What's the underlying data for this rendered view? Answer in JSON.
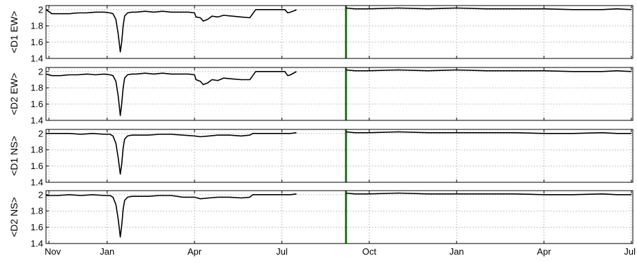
{
  "chart_data": {
    "type": "line",
    "shared_x_ticks": [
      "Nov",
      "Jan",
      "Apr",
      "Jul",
      "Oct",
      "Jan",
      "Apr",
      "Jul"
    ],
    "x_tick_months": [
      0,
      2,
      5,
      8,
      11,
      14,
      17,
      20
    ],
    "xlim": [
      -0.1,
      20.05
    ],
    "ylim": [
      1.4,
      2.05
    ],
    "y_ticks": [
      "1.4",
      "1.6",
      "1.8",
      "2"
    ],
    "y_tick_values": [
      1.4,
      1.6,
      1.8,
      2.0
    ],
    "grid": true,
    "vertical_marker": {
      "x": 10.2,
      "color": "#1f7a1f"
    },
    "panels": [
      {
        "ylabel": "<D1 EW>",
        "series": [
          {
            "x": [
              -0.1,
              0.1,
              0.4,
              0.7,
              1.0,
              1.3,
              1.6,
              1.9,
              2.1,
              2.2,
              2.3,
              2.38,
              2.45,
              2.5,
              2.55,
              2.6,
              2.7,
              2.85,
              3.0,
              3.3,
              3.6,
              3.9,
              4.2,
              4.5,
              4.8,
              5.0,
              5.05,
              5.2,
              5.3,
              5.45,
              5.6,
              5.8,
              6.0,
              6.3,
              6.6,
              6.9,
              7.0,
              7.1,
              7.3,
              7.6,
              7.9,
              8.1,
              8.2,
              8.3,
              8.45,
              8.5,
              10.2,
              10.5,
              11,
              12,
              13,
              14,
              15,
              16,
              17,
              18,
              19,
              19.5,
              20.0
            ],
            "y": [
              2.0,
              1.95,
              1.95,
              1.95,
              1.96,
              1.96,
              1.97,
              1.97,
              1.96,
              1.95,
              1.88,
              1.7,
              1.48,
              1.6,
              1.8,
              1.92,
              1.96,
              1.97,
              1.97,
              1.98,
              1.97,
              1.98,
              1.97,
              1.97,
              1.97,
              1.96,
              1.91,
              1.9,
              1.86,
              1.88,
              1.92,
              1.91,
              1.93,
              1.92,
              1.91,
              1.9,
              1.95,
              2.0,
              2.0,
              2.0,
              2.0,
              2.0,
              1.96,
              1.97,
              1.99,
              2.0,
              2.02,
              2.01,
              2.01,
              2.02,
              2.01,
              2.02,
              2.01,
              2.01,
              2.01,
              2.0,
              2.0,
              2.01,
              2.0
            ]
          }
        ]
      },
      {
        "ylabel": "<D2 EW>",
        "series": [
          {
            "x": [
              -0.1,
              0.1,
              0.4,
              0.7,
              1.0,
              1.3,
              1.6,
              1.9,
              2.1,
              2.2,
              2.3,
              2.38,
              2.45,
              2.5,
              2.55,
              2.6,
              2.7,
              2.85,
              3.0,
              3.3,
              3.6,
              3.9,
              4.2,
              4.5,
              4.8,
              5.0,
              5.05,
              5.2,
              5.3,
              5.45,
              5.6,
              5.8,
              6.0,
              6.3,
              6.6,
              6.9,
              7.0,
              7.1,
              7.3,
              7.6,
              7.9,
              8.1,
              8.2,
              8.3,
              8.45,
              8.5,
              10.2,
              10.5,
              11,
              12,
              13,
              14,
              15,
              16,
              17,
              18,
              19,
              19.5,
              20.0
            ],
            "y": [
              1.97,
              1.95,
              1.95,
              1.96,
              1.96,
              1.97,
              1.96,
              1.97,
              1.96,
              1.95,
              1.88,
              1.7,
              1.46,
              1.6,
              1.8,
              1.92,
              1.96,
              1.97,
              1.97,
              1.98,
              1.97,
              1.98,
              1.97,
              1.97,
              1.97,
              1.96,
              1.9,
              1.88,
              1.84,
              1.86,
              1.9,
              1.89,
              1.92,
              1.91,
              1.9,
              1.9,
              1.95,
              2.0,
              2.0,
              2.0,
              2.0,
              2.0,
              1.95,
              1.96,
              1.99,
              2.0,
              2.02,
              2.01,
              2.01,
              2.02,
              2.01,
              2.02,
              2.01,
              2.01,
              2.01,
              2.0,
              2.0,
              2.01,
              2.0
            ]
          }
        ]
      },
      {
        "ylabel": "<D1 NS>",
        "series": [
          {
            "x": [
              -0.1,
              0.3,
              0.7,
              1.1,
              1.5,
              1.9,
              2.1,
              2.2,
              2.3,
              2.38,
              2.45,
              2.5,
              2.55,
              2.6,
              2.7,
              2.85,
              3.0,
              3.4,
              3.8,
              4.2,
              4.6,
              5.0,
              5.2,
              5.5,
              5.8,
              6.2,
              6.6,
              6.9,
              7.0,
              7.1,
              7.5,
              8.0,
              8.3,
              8.5,
              10.2,
              10.5,
              11,
              12,
              13,
              14,
              15,
              16,
              17,
              18,
              19,
              19.5,
              20.0
            ],
            "y": [
              2.0,
              2.0,
              2.0,
              1.99,
              2.0,
              1.99,
              1.99,
              1.97,
              1.88,
              1.7,
              1.5,
              1.62,
              1.82,
              1.93,
              1.97,
              1.98,
              1.98,
              1.98,
              1.99,
              1.99,
              1.98,
              1.97,
              1.96,
              1.97,
              1.98,
              1.98,
              1.97,
              1.98,
              2.0,
              2.0,
              2.0,
              2.0,
              2.0,
              2.01,
              2.02,
              2.01,
              2.01,
              2.02,
              2.01,
              2.01,
              2.01,
              2.01,
              2.0,
              2.0,
              2.01,
              2.0,
              2.0
            ]
          }
        ]
      },
      {
        "ylabel": "<D2 NS>",
        "series": [
          {
            "x": [
              -0.1,
              0.3,
              0.7,
              1.1,
              1.5,
              1.9,
              2.1,
              2.2,
              2.3,
              2.38,
              2.45,
              2.5,
              2.55,
              2.6,
              2.7,
              2.85,
              3.0,
              3.4,
              3.8,
              4.2,
              4.6,
              5.0,
              5.2,
              5.5,
              5.8,
              6.2,
              6.6,
              6.9,
              7.0,
              7.1,
              7.5,
              8.0,
              8.3,
              8.5,
              10.2,
              10.5,
              11,
              12,
              13,
              14,
              15,
              16,
              17,
              18,
              19,
              19.5,
              20.0
            ],
            "y": [
              1.99,
              1.99,
              2.0,
              1.99,
              2.0,
              1.99,
              1.99,
              1.97,
              1.88,
              1.7,
              1.48,
              1.62,
              1.82,
              1.93,
              1.97,
              1.98,
              1.98,
              1.98,
              1.99,
              1.99,
              1.97,
              1.97,
              1.95,
              1.96,
              1.97,
              1.97,
              1.96,
              1.97,
              2.0,
              2.0,
              2.0,
              2.0,
              2.0,
              2.01,
              2.02,
              2.01,
              2.01,
              2.02,
              2.01,
              2.01,
              2.01,
              2.01,
              2.0,
              2.0,
              2.01,
              2.0,
              2.0
            ]
          }
        ]
      }
    ]
  }
}
